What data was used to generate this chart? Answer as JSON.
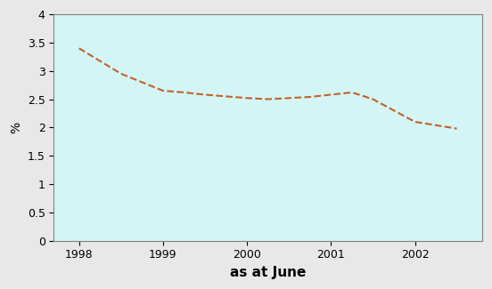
{
  "x": [
    1998,
    1998.5,
    1999,
    1999.25,
    1999.5,
    1999.75,
    2000,
    2000.25,
    2000.5,
    2000.75,
    2001,
    2001.25,
    2001.5,
    2001.75,
    2002,
    2002.5
  ],
  "y": [
    3.4,
    2.95,
    2.65,
    2.62,
    2.58,
    2.55,
    2.52,
    2.5,
    2.52,
    2.54,
    2.58,
    2.62,
    2.5,
    2.3,
    2.1,
    1.98
  ],
  "xlabel": "as at June",
  "ylabel": "%",
  "xlim": [
    1997.7,
    2002.8
  ],
  "ylim": [
    0,
    4
  ],
  "yticks": [
    0,
    0.5,
    1.0,
    1.5,
    2.0,
    2.5,
    3.0,
    3.5,
    4.0
  ],
  "xticks": [
    1998,
    1999,
    2000,
    2001,
    2002
  ],
  "line_color": "#c0622a",
  "line_style": "--",
  "line_width": 1.5,
  "plot_bg_color": "#d4f5f5",
  "fig_bg_color": "#e8e8e8",
  "xlabel_fontsize": 11,
  "ylabel_fontsize": 10,
  "tick_fontsize": 9
}
